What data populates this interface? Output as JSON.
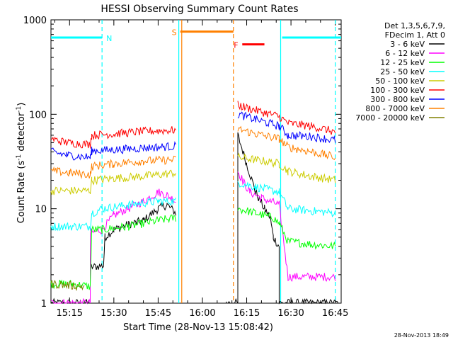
{
  "footer": {
    "timestamp": "28-Nov-2013 18:49"
  },
  "colors": {
    "3-6": "#000000",
    "6-12": "#ff00ff",
    "12-25": "#00ff00",
    "25-50": "#00ffff",
    "50-100": "#cccc00",
    "100-300": "#ff0000",
    "300-800": "#0000ff",
    "800-7000": "#ff8000",
    "7000-20000": "#808000"
  },
  "chart_data": {
    "type": "line",
    "title": "HESSI Observing Summary Count Rates",
    "xlabel": "Start Time (28-Nov-13 15:08:42)",
    "ylabel_main": "Count Rate (s",
    "ylabel_sup1": "-1",
    "ylabel_mid": " detector",
    "ylabel_sup2": "-1",
    "ylabel_end": ")",
    "y_scale": "log",
    "xlim": [
      "15:08:42",
      "16:47:00"
    ],
    "ylim": [
      1,
      1000
    ],
    "x_ticks": [
      "15:15",
      "15:30",
      "15:45",
      "16:00",
      "16:15",
      "16:30",
      "16:45"
    ],
    "y_ticks": [
      {
        "value": 1,
        "label": "1"
      },
      {
        "value": 10,
        "label": "10"
      },
      {
        "value": 100,
        "label": "100"
      },
      {
        "value": 1000,
        "label": "1000"
      }
    ],
    "legend": {
      "placement": "right",
      "header": [
        "Det 1,3,5,6,7,9,",
        "FDecim 1, Att 0"
      ],
      "entries": [
        {
          "label": "3 - 6 keV",
          "color": "#000000"
        },
        {
          "label": "6 - 12 keV",
          "color": "#ff00ff"
        },
        {
          "label": "12 - 25 keV",
          "color": "#00ff00"
        },
        {
          "label": "25 - 50 keV",
          "color": "#00ffff"
        },
        {
          "label": "50 - 100 keV",
          "color": "#cccc00"
        },
        {
          "label": "100 - 300 keV",
          "color": "#ff0000"
        },
        {
          "label": "300 - 800 keV",
          "color": "#0000ff"
        },
        {
          "label": "800 - 7000 keV",
          "color": "#ff8000"
        },
        {
          "label": "7000 - 20000 keV",
          "color": "#808000"
        }
      ]
    },
    "flags": [
      {
        "label": "N",
        "color": "#00ffff",
        "level": 650,
        "segments": [
          [
            "15:08:42",
            "15:26:00"
          ],
          [
            "16:27:00",
            "16:47:00"
          ]
        ]
      },
      {
        "label": "S",
        "color": "#ff8000",
        "level": 750,
        "segments": [
          [
            "15:52:30",
            "16:10:30"
          ]
        ]
      },
      {
        "label": "F",
        "color": "#ff0000",
        "level": 550,
        "segments": [
          [
            "16:13:30",
            "16:21:00"
          ]
        ]
      }
    ],
    "markers": [
      {
        "time": "15:26:00",
        "color": "#00ffff",
        "style": "dashed"
      },
      {
        "time": "15:52:00",
        "color": "#00ffff",
        "style": "solid"
      },
      {
        "time": "15:53:00",
        "color": "#ff8000",
        "style": "solid"
      },
      {
        "time": "16:10:30",
        "color": "#ff8000",
        "style": "dashed"
      },
      {
        "time": "16:26:30",
        "color": "#00ffff",
        "style": "solid"
      },
      {
        "time": "16:45:00",
        "color": "#00ffff",
        "style": "dashed"
      }
    ],
    "series": [
      {
        "band": "3-6",
        "segments": [
          [
            [
              "15:08:42",
              1.0
            ],
            [
              "15:22:00",
              1.0
            ],
            [
              "15:22:00",
              2.4
            ],
            [
              "15:26:30",
              2.5
            ],
            [
              "15:27:00",
              5
            ],
            [
              "15:30:00",
              6
            ],
            [
              "15:35:00",
              6.8
            ],
            [
              "15:40:00",
              7.5
            ],
            [
              "15:45:00",
              10
            ],
            [
              "15:48:00",
              11
            ],
            [
              "15:51:00",
              9
            ]
          ],
          [
            [
              "16:08:00",
              1.0
            ],
            [
              "16:12:00",
              1.0
            ],
            [
              "16:12:00",
              60
            ],
            [
              "16:15:00",
              30
            ],
            [
              "16:18:00",
              15
            ],
            [
              "16:21:00",
              10
            ],
            [
              "16:23:00",
              8
            ],
            [
              "16:24:00",
              5
            ],
            [
              "16:26:00",
              4
            ],
            [
              "16:26:00",
              1.0
            ],
            [
              "16:46:00",
              1.0
            ]
          ]
        ]
      },
      {
        "band": "6-12",
        "segments": [
          [
            [
              "15:08:42",
              1.0
            ],
            [
              "15:22:00",
              1.0
            ],
            [
              "15:22:00",
              5.5
            ],
            [
              "15:26:00",
              6
            ],
            [
              "15:30:00",
              8.5
            ],
            [
              "15:40:00",
              12
            ],
            [
              "15:45:00",
              15
            ],
            [
              "15:48:00",
              14
            ],
            [
              "15:51:00",
              12
            ]
          ],
          [
            [
              "16:12:00",
              25
            ],
            [
              "16:14:00",
              19
            ],
            [
              "16:16:00",
              15
            ],
            [
              "16:20:00",
              13
            ],
            [
              "16:23:00",
              12
            ],
            [
              "16:26:00",
              11
            ],
            [
              "16:29:00",
              1.9
            ],
            [
              "16:45:00",
              1.9
            ]
          ]
        ]
      },
      {
        "band": "12-25",
        "segments": [
          [
            [
              "15:08:42",
              1.6
            ],
            [
              "15:16:00",
              1.6
            ],
            [
              "15:22:00",
              1.5
            ],
            [
              "15:22:30",
              6
            ],
            [
              "15:26:00",
              6
            ],
            [
              "15:35:00",
              6.5
            ],
            [
              "15:45:00",
              7.5
            ],
            [
              "15:51:00",
              8
            ]
          ],
          [
            [
              "16:12:00",
              10
            ],
            [
              "16:18:00",
              9
            ],
            [
              "16:24:00",
              8
            ],
            [
              "16:26:00",
              7
            ],
            [
              "16:29:00",
              4.5
            ],
            [
              "16:37:00",
              4.2
            ],
            [
              "16:45:00",
              4
            ]
          ]
        ]
      },
      {
        "band": "25-50",
        "segments": [
          [
            [
              "15:08:42",
              6.5
            ],
            [
              "15:22:00",
              6.5
            ],
            [
              "15:22:30",
              9
            ],
            [
              "15:26:00",
              10
            ],
            [
              "15:35:00",
              11
            ],
            [
              "15:45:00",
              12
            ],
            [
              "15:51:00",
              12
            ]
          ],
          [
            [
              "16:12:00",
              19
            ],
            [
              "16:18:00",
              17
            ],
            [
              "16:26:00",
              15
            ],
            [
              "16:29:00",
              10
            ],
            [
              "16:45:00",
              9
            ]
          ]
        ]
      },
      {
        "band": "50-100",
        "segments": [
          [
            [
              "15:08:42",
              15.5
            ],
            [
              "15:22:00",
              15.5
            ],
            [
              "15:22:30",
              20
            ],
            [
              "15:30:00",
              21
            ],
            [
              "15:40:00",
              22
            ],
            [
              "15:51:00",
              24
            ]
          ],
          [
            [
              "16:12:00",
              35
            ],
            [
              "16:18:00",
              33
            ],
            [
              "16:26:00",
              30
            ],
            [
              "16:29:00",
              25
            ],
            [
              "16:37:00",
              22
            ],
            [
              "16:45:00",
              20
            ]
          ]
        ]
      },
      {
        "band": "100-300",
        "segments": [
          [
            [
              "15:08:42",
              55
            ],
            [
              "15:14:00",
              50
            ],
            [
              "15:22:00",
              48
            ],
            [
              "15:22:30",
              60
            ],
            [
              "15:30:00",
              62
            ],
            [
              "15:40:00",
              66
            ],
            [
              "15:51:00",
              68
            ]
          ],
          [
            [
              "16:12:00",
              125
            ],
            [
              "16:18:00",
              110
            ],
            [
              "16:26:00",
              95
            ],
            [
              "16:29:00",
              80
            ],
            [
              "16:37:00",
              75
            ],
            [
              "16:45:00",
              65
            ]
          ]
        ]
      },
      {
        "band": "300-800",
        "segments": [
          [
            [
              "15:08:42",
              40
            ],
            [
              "15:14:00",
              37
            ],
            [
              "15:22:00",
              35
            ],
            [
              "15:22:30",
              41
            ],
            [
              "15:30:00",
              42
            ],
            [
              "15:40:00",
              44
            ],
            [
              "15:51:00",
              46
            ]
          ],
          [
            [
              "16:12:00",
              100
            ],
            [
              "16:18:00",
              88
            ],
            [
              "16:26:00",
              75
            ],
            [
              "16:29:00",
              60
            ],
            [
              "16:37:00",
              58
            ],
            [
              "16:45:00",
              53
            ]
          ]
        ]
      },
      {
        "band": "800-7000",
        "segments": [
          [
            [
              "15:08:42",
              25
            ],
            [
              "15:15:00",
              24
            ],
            [
              "15:22:00",
              23
            ],
            [
              "15:22:30",
              28
            ],
            [
              "15:30:00",
              30
            ],
            [
              "15:40:00",
              32
            ],
            [
              "15:51:00",
              33
            ]
          ],
          [
            [
              "16:12:00",
              70
            ],
            [
              "16:18:00",
              62
            ],
            [
              "16:26:00",
              55
            ],
            [
              "16:29:00",
              45
            ],
            [
              "16:37:00",
              40
            ],
            [
              "16:45:00",
              35
            ]
          ]
        ]
      },
      {
        "band": "7000-20000",
        "segments": [
          [
            [
              "15:08:42",
              1.6
            ],
            [
              "15:20:00",
              1.5
            ]
          ]
        ]
      }
    ]
  }
}
